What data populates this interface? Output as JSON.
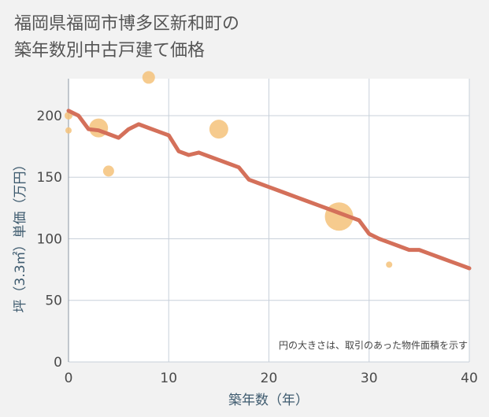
{
  "title_line1": "福岡県福岡市博多区新和町の",
  "title_line2": "築年数別中古戸建て価格",
  "chart_data": {
    "type": "scatter+line",
    "xlabel": "築年数（年）",
    "ylabel": "坪（3.3㎡）単価（万円）",
    "xlim": [
      0,
      40
    ],
    "ylim": [
      0,
      230
    ],
    "x_ticks": [
      0,
      10,
      20,
      30,
      40
    ],
    "y_ticks": [
      0,
      50,
      100,
      150,
      200
    ],
    "grid": true,
    "annotation": "円の大きさは、取引のあった物件面積を示す",
    "colors": {
      "line": "#d4705a",
      "bubble": "#f5c27a",
      "grid": "#c8d0da",
      "plot_bg": "#ffffff"
    },
    "line_series": {
      "x": [
        0,
        1,
        2,
        3,
        4,
        5,
        6,
        7,
        8,
        9,
        10,
        11,
        12,
        13,
        14,
        15,
        16,
        17,
        18,
        19,
        20,
        21,
        22,
        23,
        24,
        25,
        26,
        27,
        28,
        29,
        30,
        31,
        32,
        33,
        34,
        35,
        36,
        37,
        38,
        39,
        40
      ],
      "y": [
        204,
        200,
        189,
        188,
        185,
        182,
        189,
        193,
        190,
        187,
        184,
        171,
        168,
        170,
        167,
        164,
        161,
        158,
        148,
        145,
        142,
        139,
        136,
        133,
        130,
        127,
        124,
        121,
        118,
        115,
        104,
        100,
        97,
        94,
        91,
        91,
        88,
        85,
        82,
        79,
        76
      ]
    },
    "bubbles": [
      {
        "x": 0,
        "y": 200,
        "size": 5
      },
      {
        "x": 0,
        "y": 188,
        "size": 4
      },
      {
        "x": 3,
        "y": 190,
        "size": 12
      },
      {
        "x": 4,
        "y": 155,
        "size": 7
      },
      {
        "x": 8,
        "y": 231,
        "size": 8
      },
      {
        "x": 15,
        "y": 189,
        "size": 12
      },
      {
        "x": 27,
        "y": 118,
        "size": 18
      },
      {
        "x": 32,
        "y": 79,
        "size": 4
      }
    ]
  }
}
